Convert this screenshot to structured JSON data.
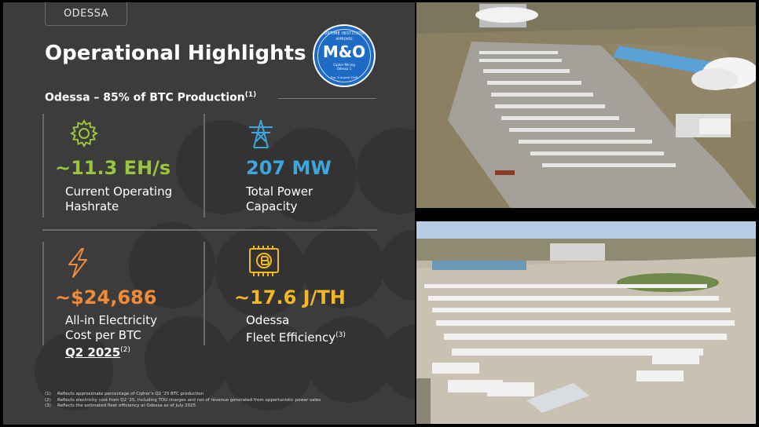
{
  "slide": {
    "tag": "ODESSA",
    "title": "Operational Highlights",
    "badge": {
      "top": "UPTIME INSTITUTE",
      "approves": "APPROVES",
      "main": "M&O",
      "sub1": "Cipher Mining",
      "sub2": "Odessa 1",
      "date": "Exp. 8 August 2026"
    },
    "subtitle": "Odessa – 85% of BTC Production",
    "subtitle_note": "(1)",
    "metrics": [
      {
        "value": "~11.3 EH/s",
        "line1": "Current Operating",
        "line2": "Hashrate",
        "icon": "gear-icon",
        "color": "#9bc53d"
      },
      {
        "value": "207 MW",
        "line1": "Total Power",
        "line2": "Capacity",
        "icon": "power-tower-icon",
        "color": "#3ba7dc"
      },
      {
        "value": "~$24,686",
        "line1": "All-in Electricity",
        "line2": "Cost per BTC",
        "line3": "Q2 2025",
        "line3_note": "(2)",
        "icon": "lightning-icon",
        "color": "#f08b3a"
      },
      {
        "value": "~17.6 J/TH",
        "line1": "Odessa",
        "line2": "Fleet Efficiency",
        "line2_note": "(3)",
        "icon": "bitcoin-miner-icon",
        "color": "#f2b824"
      }
    ],
    "footnotes": [
      {
        "num": "(1)",
        "text": "Reflects approximate percentage of Cipher's Q2 '25 BTC production"
      },
      {
        "num": "(2)",
        "text": "Reflects electricity cost from Q2 '25, including TDU charges and net of revenue generated from opportunistic power sales"
      },
      {
        "num": "(3)",
        "text": "Reflects the estimated fleet efficiency at Odessa as of July 2025"
      }
    ]
  },
  "photos": [
    {
      "name": "aerial-photo-site-overview",
      "desc_icon": "photo-icon"
    },
    {
      "name": "aerial-photo-container-field",
      "desc_icon": "photo-icon"
    }
  ]
}
